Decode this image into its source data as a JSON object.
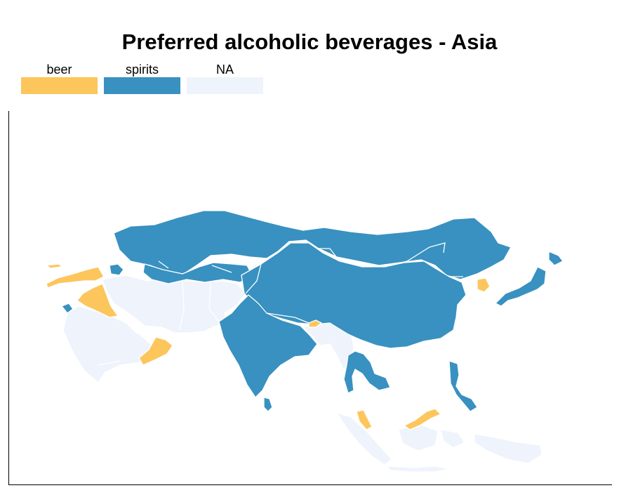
{
  "title": "Preferred alcoholic beverages - Asia",
  "legend": [
    {
      "label": "beer",
      "color": "#fcc65c"
    },
    {
      "label": "spirits",
      "color": "#3891c0"
    },
    {
      "label": "NA",
      "color": "#eef3fc"
    }
  ],
  "colors": {
    "beer": "#fcc65c",
    "spirits": "#3891c0",
    "na": "#eef3fc",
    "border": "#ffffff"
  },
  "regions": [
    {
      "name": "kazakhstan-mongolia-russia-asia",
      "category": "spirits"
    },
    {
      "name": "china",
      "category": "spirits"
    },
    {
      "name": "central-asia",
      "category": "spirits"
    },
    {
      "name": "india",
      "category": "spirits"
    },
    {
      "name": "sri-lanka",
      "category": "spirits"
    },
    {
      "name": "japan",
      "category": "spirits"
    },
    {
      "name": "mainland-southeast-asia",
      "category": "spirits"
    },
    {
      "name": "philippines",
      "category": "spirits"
    },
    {
      "name": "caucasus",
      "category": "spirits"
    },
    {
      "name": "turkey",
      "category": "beer"
    },
    {
      "name": "iraq",
      "category": "beer"
    },
    {
      "name": "oman",
      "category": "beer"
    },
    {
      "name": "south-korea",
      "category": "beer"
    },
    {
      "name": "bhutan",
      "category": "beer"
    },
    {
      "name": "malaysia-peninsula",
      "category": "beer"
    },
    {
      "name": "borneo-malaysia",
      "category": "beer"
    },
    {
      "name": "arabian-peninsula",
      "category": "na"
    },
    {
      "name": "iran-afghanistan-pakistan",
      "category": "na"
    },
    {
      "name": "myanmar-bangladesh",
      "category": "na"
    },
    {
      "name": "indonesia",
      "category": "na"
    }
  ]
}
